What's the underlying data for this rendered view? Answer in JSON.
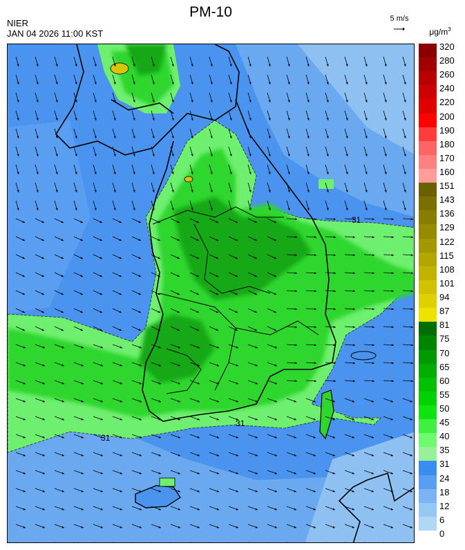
{
  "header": {
    "agency": "NIER",
    "datetime": "JAN 04 2026 11:00 KST",
    "title": "PM-10",
    "wind_reference": "5 m/s",
    "unit_prefix": "μg/m",
    "unit_exp": "3"
  },
  "legend": {
    "labels": [
      "320",
      "280",
      "260",
      "240",
      "220",
      "200",
      "190",
      "180",
      "170",
      "160",
      "151",
      "143",
      "136",
      "129",
      "122",
      "115",
      "108",
      "101",
      "94",
      "87",
      "81",
      "75",
      "70",
      "65",
      "60",
      "55",
      "50",
      "45",
      "40",
      "35",
      "31",
      "24",
      "18",
      "12",
      "6",
      "0"
    ],
    "colors": [
      "#8a0000",
      "#a20000",
      "#b80000",
      "#cc0000",
      "#e00000",
      "#ff0000",
      "#ff3c3c",
      "#ff6464",
      "#ff8080",
      "#ff9c9c",
      "#6b6000",
      "#7a6f00",
      "#887d00",
      "#968b00",
      "#a49800",
      "#b2a600",
      "#c0b400",
      "#cfc200",
      "#dfd100",
      "#eee300",
      "#006e00",
      "#008500",
      "#009a00",
      "#00ad00",
      "#00c000",
      "#00d200",
      "#10e410",
      "#40f040",
      "#70fa70",
      "#98f098",
      "#3a8cf0",
      "#5a9ef2",
      "#7ab4f4",
      "#96c8f4",
      "#b0d8f4"
    ],
    "contour_label": "31"
  },
  "colors": {
    "ocean": "#4a93ee",
    "ocean_light": "#6aa8f0",
    "ocean_lighter": "#8ec0f2",
    "green_light": "#6fef6f",
    "green_mid": "#2ed62e",
    "green_dark": "#17a817",
    "yellow_spot": "#d8c400",
    "outline": "#000000"
  }
}
